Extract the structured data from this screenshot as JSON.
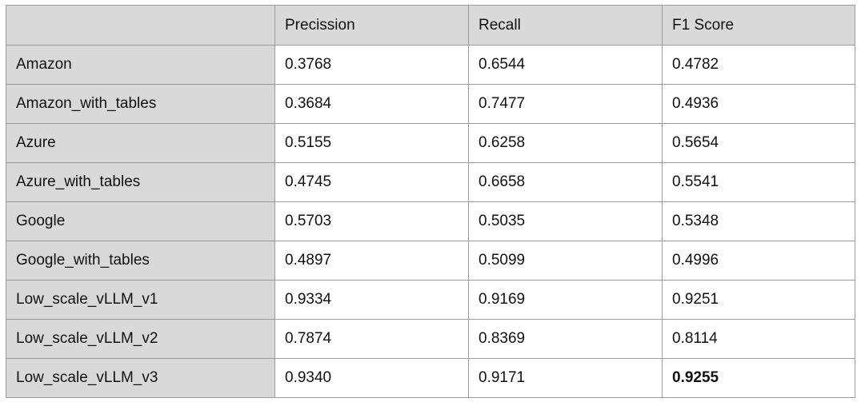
{
  "table": {
    "headers": [
      "",
      "Precission",
      "Recall",
      "F1 Score"
    ],
    "rows": [
      {
        "name": "Amazon",
        "precision": "0.3768",
        "recall": "0.6544",
        "f1": "0.4782"
      },
      {
        "name": "Amazon_with_tables",
        "precision": "0.3684",
        "recall": "0.7477",
        "f1": "0.4936"
      },
      {
        "name": "Azure",
        "precision": "0.5155",
        "recall": "0.6258",
        "f1": "0.5654"
      },
      {
        "name": "Azure_with_tables",
        "precision": "0.4745",
        "recall": "0.6658",
        "f1": "0.5541"
      },
      {
        "name": "Google",
        "precision": "0.5703",
        "recall": "0.5035",
        "f1": "0.5348"
      },
      {
        "name": "Google_with_tables",
        "precision": "0.4897",
        "recall": "0.5099",
        "f1": "0.4996"
      },
      {
        "name": "Low_scale_vLLM_v1",
        "precision": "0.9334",
        "recall": "0.9169",
        "f1": "0.9251"
      },
      {
        "name": "Low_scale_vLLM_v2",
        "precision": "0.7874",
        "recall": "0.8369",
        "f1": "0.8114"
      },
      {
        "name": "Low_scale_vLLM_v3",
        "precision": "0.9340",
        "recall": "0.9171",
        "f1": "0.9255"
      }
    ],
    "bold_cells": [
      "Low_scale_vLLM_v3:f1"
    ],
    "colors": {
      "header_bg": "#d9d9d9",
      "cell_bg": "#ffffff",
      "border": "#9a9a9a"
    }
  }
}
